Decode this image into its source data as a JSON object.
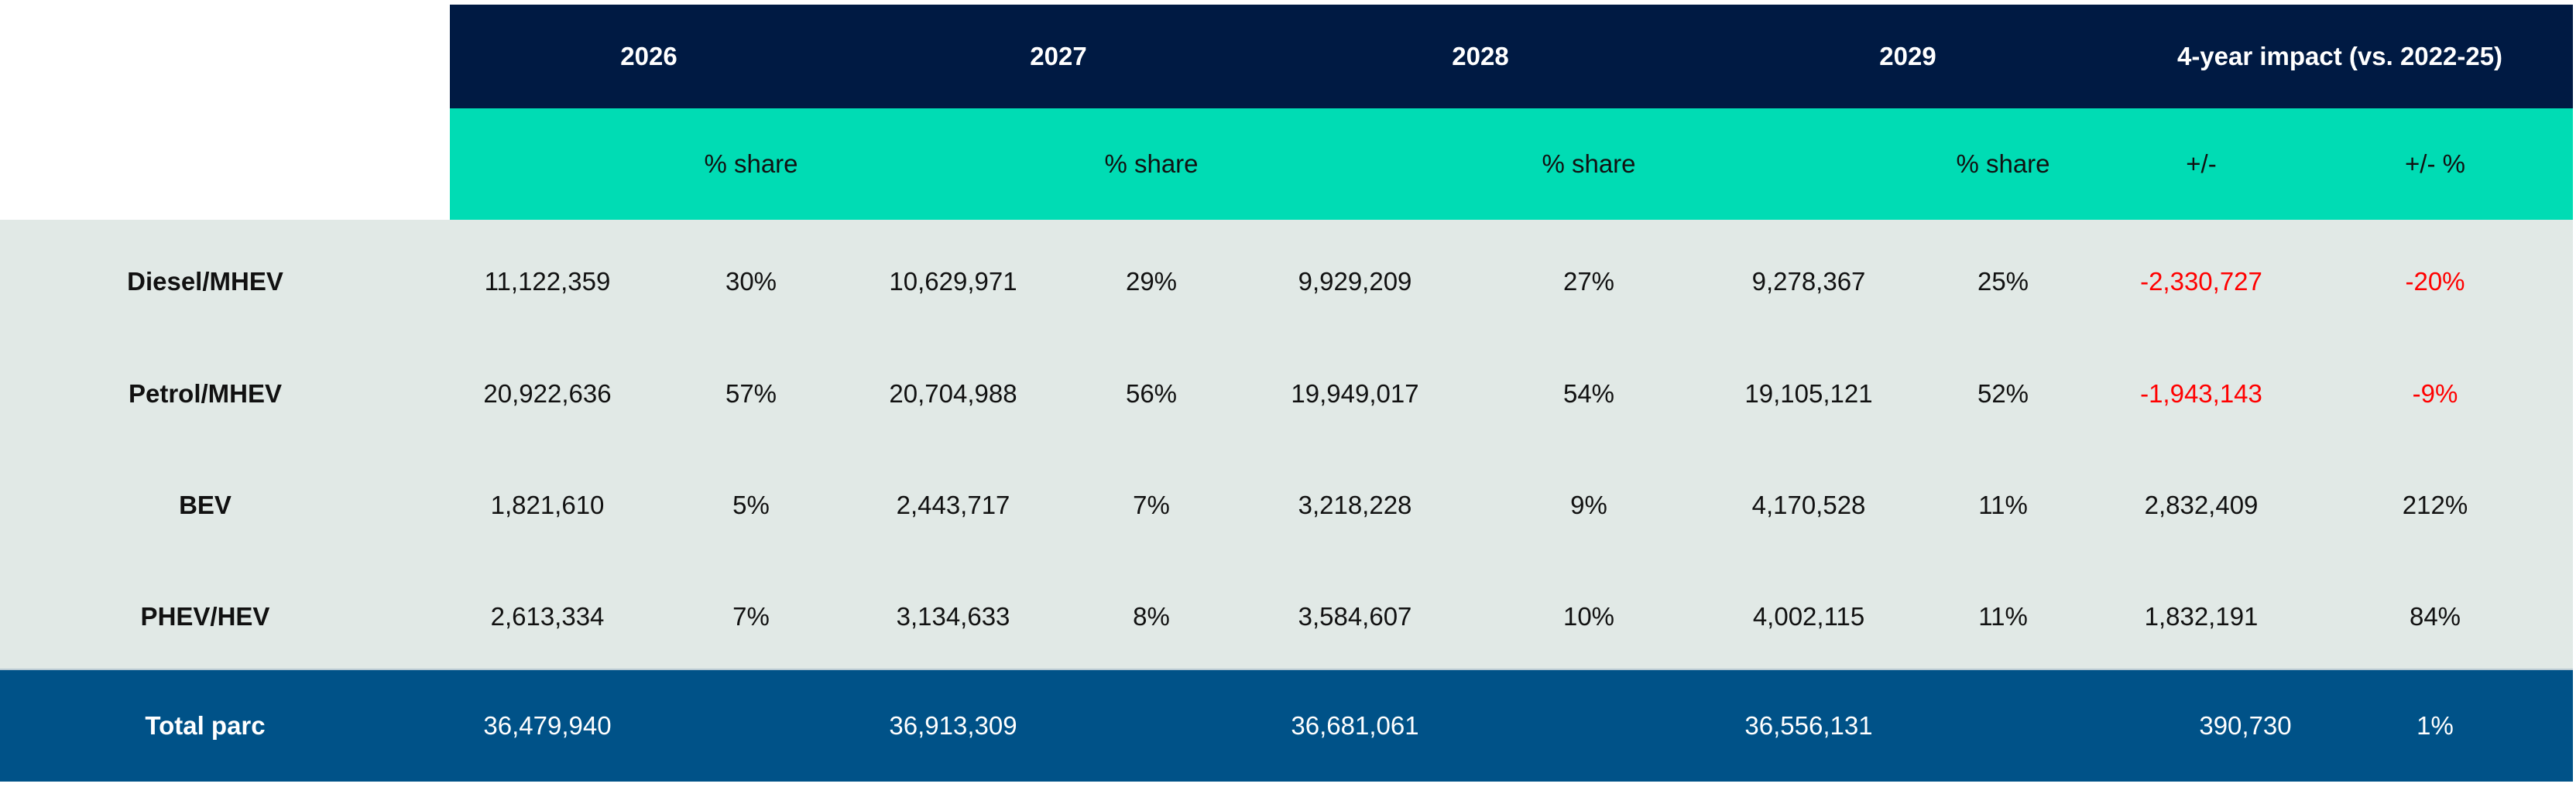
{
  "header": {
    "years": [
      "2026",
      "2027",
      "2028",
      "2029"
    ],
    "impact_title": "4-year impact (vs. 2022-25)",
    "share_label": "% share",
    "delta_label": "+/-",
    "delta_pct_label": "+/- %"
  },
  "colors": {
    "header": "#001a43",
    "subheader": "#00dcb4",
    "body": "#e1e9e6",
    "total": "#005288",
    "negative": "#ff0000"
  },
  "rows": [
    {
      "label": "Diesel/MHEV",
      "values": [
        "11,122,359",
        "30%",
        "10,629,971",
        "29%",
        "9,929,209",
        "27%",
        "9,278,367",
        "25%"
      ],
      "delta": "-2,330,727",
      "delta_pct": "-20%",
      "negative": true
    },
    {
      "label": "Petrol/MHEV",
      "values": [
        "20,922,636",
        "57%",
        "20,704,988",
        "56%",
        "19,949,017",
        "54%",
        "19,105,121",
        "52%"
      ],
      "delta": "-1,943,143",
      "delta_pct": "-9%",
      "negative": true
    },
    {
      "label": "BEV",
      "values": [
        "1,821,610",
        "5%",
        "2,443,717",
        "7%",
        "3,218,228",
        "9%",
        "4,170,528",
        "11%"
      ],
      "delta": "2,832,409",
      "delta_pct": "212%",
      "negative": false
    },
    {
      "label": "PHEV/HEV",
      "values": [
        "2,613,334",
        "7%",
        "3,134,633",
        "8%",
        "3,584,607",
        "10%",
        "4,002,115",
        "11%"
      ],
      "delta": "1,832,191",
      "delta_pct": "84%",
      "negative": false
    }
  ],
  "total": {
    "label": "Total parc",
    "values": [
      "36,479,940",
      "36,913,309",
      "36,681,061",
      "36,556,131"
    ],
    "delta": "390,730",
    "delta_pct": "1%"
  }
}
